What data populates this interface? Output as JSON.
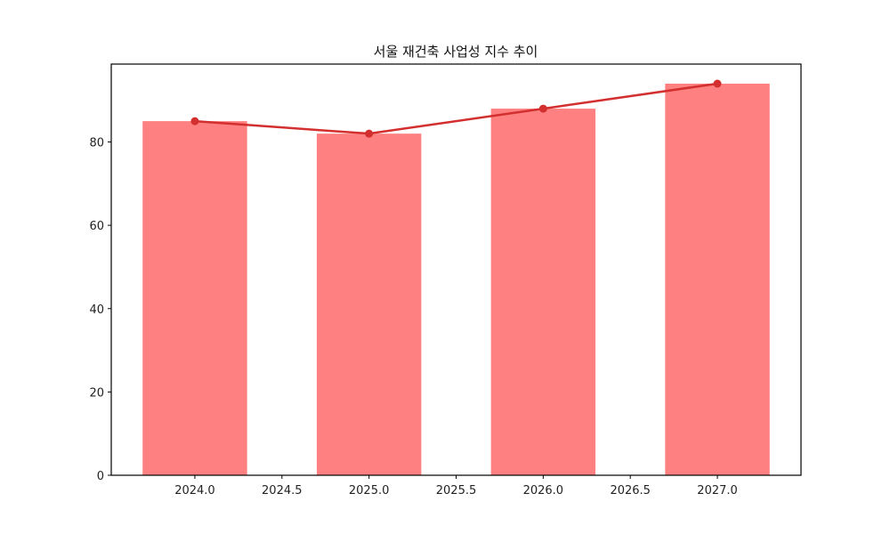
{
  "chart_data": {
    "type": "bar",
    "title": "서울 재건축 사업성 지수 추이",
    "xlabel": "",
    "ylabel": "",
    "x": [
      2024,
      2025,
      2026,
      2027
    ],
    "series": [
      {
        "name": "bar",
        "type": "bar",
        "values": [
          85,
          82,
          88,
          94
        ],
        "color": "#ff8080"
      },
      {
        "name": "line",
        "type": "line",
        "values": [
          85,
          82,
          88,
          94
        ],
        "color": "#d32f2f",
        "marker": "o"
      }
    ],
    "xticks": [
      "2024.0",
      "2024.5",
      "2025.0",
      "2025.5",
      "2026.0",
      "2026.5",
      "2027.0"
    ],
    "yticks": [
      "0",
      "20",
      "40",
      "60",
      "80"
    ],
    "xlim": [
      2023.52,
      2027.48
    ],
    "ylim": [
      0,
      98.7
    ],
    "grid": false,
    "legend": null
  }
}
